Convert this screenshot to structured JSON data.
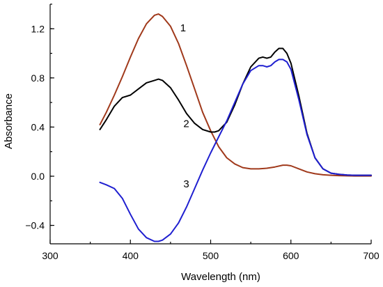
{
  "chart_data": {
    "type": "line",
    "xlabel": "Wavelength (nm)",
    "ylabel": "Absorbance",
    "xlim": [
      300,
      700
    ],
    "ylim": [
      -0.55,
      1.4
    ],
    "xticks": [
      "300",
      "400",
      "500",
      "600",
      "700"
    ],
    "yticks": [
      "1.2",
      "0.8",
      "0.4",
      "0.0",
      "−0.4"
    ],
    "grid": false,
    "legend": "none",
    "series": [
      {
        "label": "1",
        "color": "#a0391b",
        "x": [
          362,
          370,
          380,
          390,
          400,
          410,
          420,
          430,
          435,
          440,
          450,
          460,
          470,
          480,
          490,
          500,
          510,
          520,
          530,
          540,
          550,
          560,
          570,
          580,
          590,
          595,
          600,
          610,
          620,
          630,
          640,
          650,
          660,
          670,
          680,
          690,
          700
        ],
        "y": [
          0.42,
          0.52,
          0.66,
          0.81,
          0.97,
          1.12,
          1.24,
          1.31,
          1.32,
          1.3,
          1.22,
          1.08,
          0.9,
          0.71,
          0.52,
          0.37,
          0.24,
          0.15,
          0.1,
          0.07,
          0.06,
          0.06,
          0.065,
          0.075,
          0.09,
          0.09,
          0.085,
          0.06,
          0.035,
          0.02,
          0.012,
          0.008,
          0.005,
          0.003,
          0.002,
          0.002,
          0.002
        ]
      },
      {
        "label": "2",
        "color": "#000000",
        "x": [
          362,
          370,
          380,
          390,
          400,
          410,
          420,
          430,
          435,
          440,
          450,
          460,
          470,
          480,
          490,
          500,
          505,
          510,
          520,
          530,
          540,
          550,
          560,
          565,
          570,
          575,
          580,
          585,
          590,
          595,
          600,
          610,
          620,
          630,
          640,
          650,
          660,
          670,
          680,
          690,
          700
        ],
        "y": [
          0.38,
          0.46,
          0.57,
          0.64,
          0.66,
          0.71,
          0.76,
          0.78,
          0.79,
          0.78,
          0.72,
          0.62,
          0.51,
          0.43,
          0.38,
          0.36,
          0.36,
          0.37,
          0.44,
          0.58,
          0.75,
          0.89,
          0.96,
          0.97,
          0.96,
          0.97,
          1.01,
          1.04,
          1.04,
          1.0,
          0.92,
          0.65,
          0.35,
          0.15,
          0.06,
          0.025,
          0.015,
          0.01,
          0.008,
          0.008,
          0.008
        ]
      },
      {
        "label": "3",
        "color": "#1f1fd0",
        "x": [
          362,
          370,
          380,
          390,
          400,
          410,
          420,
          430,
          435,
          440,
          450,
          460,
          470,
          480,
          490,
          500,
          510,
          520,
          530,
          540,
          550,
          560,
          565,
          570,
          575,
          580,
          585,
          590,
          595,
          600,
          610,
          620,
          630,
          640,
          650,
          660,
          670,
          680,
          690,
          700
        ],
        "y": [
          -0.05,
          -0.07,
          -0.1,
          -0.18,
          -0.31,
          -0.43,
          -0.5,
          -0.53,
          -0.53,
          -0.52,
          -0.47,
          -0.38,
          -0.25,
          -0.1,
          0.05,
          0.19,
          0.32,
          0.45,
          0.6,
          0.75,
          0.86,
          0.9,
          0.9,
          0.89,
          0.9,
          0.93,
          0.95,
          0.95,
          0.93,
          0.87,
          0.62,
          0.34,
          0.15,
          0.06,
          0.025,
          0.015,
          0.01,
          0.008,
          0.008,
          0.008
        ]
      }
    ],
    "curve_labels": [
      {
        "text": "1",
        "x": 462,
        "y": 1.18
      },
      {
        "text": "2",
        "x": 466,
        "y": 0.4
      },
      {
        "text": "3",
        "x": 466,
        "y": -0.09
      }
    ]
  }
}
